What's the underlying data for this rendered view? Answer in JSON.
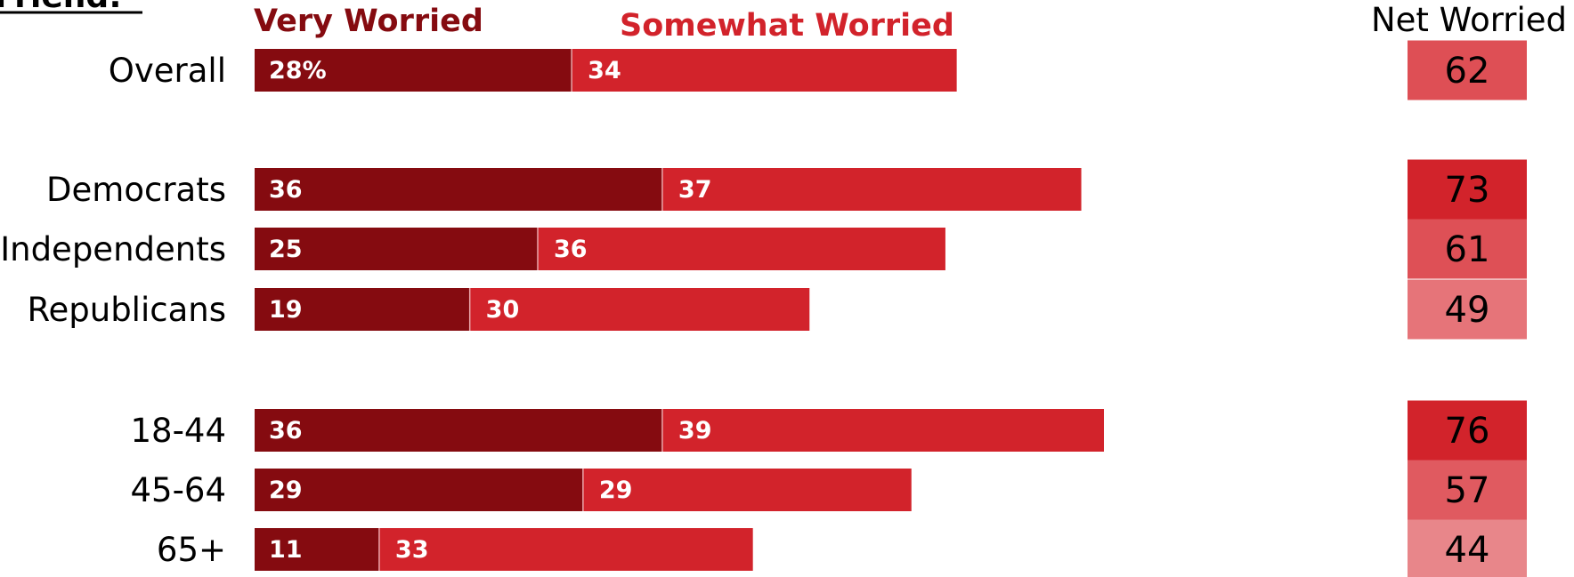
{
  "chart_data": {
    "type": "bar",
    "title_fragment": "Friend:",
    "series": [
      {
        "name": "Very Worried",
        "color": "#850b10"
      },
      {
        "name": "Somewhat Worried",
        "color": "#d2232b"
      }
    ],
    "net_header": "Net Worried",
    "groups": [
      {
        "rows": [
          {
            "category": "Overall",
            "very": 28,
            "very_label": "28%",
            "somewhat": 34,
            "somewhat_label": "34",
            "net": 62,
            "net_label": "62",
            "net_color": "#de4f55"
          }
        ]
      },
      {
        "rows": [
          {
            "category": "Democrats",
            "very": 36,
            "very_label": "36",
            "somewhat": 37,
            "somewhat_label": "37",
            "net": 73,
            "net_label": "73",
            "net_color": "#d2232b"
          },
          {
            "category": "Independents",
            "very": 25,
            "very_label": "25",
            "somewhat": 36,
            "somewhat_label": "36",
            "net": 61,
            "net_label": "61",
            "net_color": "#de5056"
          },
          {
            "category": "Republicans",
            "very": 19,
            "very_label": "19",
            "somewhat": 30,
            "somewhat_label": "30",
            "net": 49,
            "net_label": "49",
            "net_color": "#e67479"
          }
        ]
      },
      {
        "rows": [
          {
            "category": "18-44",
            "very": 36,
            "very_label": "36",
            "somewhat": 39,
            "somewhat_label": "39",
            "net": 76,
            "net_label": "76",
            "net_color": "#d2232b"
          },
          {
            "category": "45-64",
            "very": 29,
            "very_label": "29",
            "somewhat": 29,
            "somewhat_label": "29",
            "net": 57,
            "net_label": "57",
            "net_color": "#e05a60"
          },
          {
            "category": "65+",
            "very": 11,
            "very_label": "11",
            "somewhat": 33,
            "somewhat_label": "33",
            "net": 44,
            "net_label": "44",
            "net_color": "#e8868a"
          }
        ]
      }
    ],
    "xlim": [
      0,
      100
    ]
  }
}
